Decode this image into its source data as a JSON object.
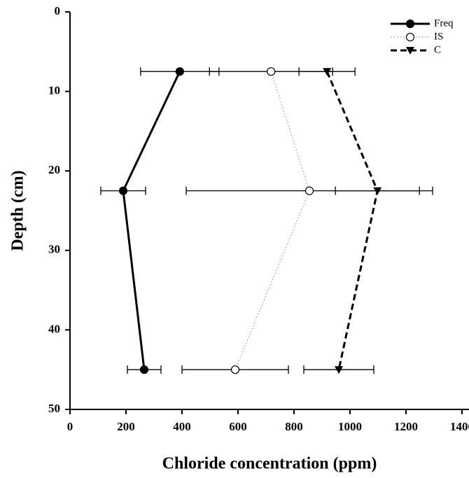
{
  "chart_data": {
    "type": "line",
    "x_label": "Chloride concentration (ppm)",
    "y_label": "Depth (cm)",
    "y": [
      7.5,
      22.5,
      45
    ],
    "series": [
      {
        "name": "Freq",
        "color": "#000000",
        "line_style": "solid",
        "marker": "filled-circle",
        "values": [
          392,
          190,
          265
        ],
        "errors": [
          140,
          80,
          60
        ]
      },
      {
        "name": "IS",
        "color": "#999999",
        "line_style": "dotted",
        "marker": "open-circle",
        "values": [
          718,
          855,
          590
        ],
        "errors": [
          220,
          440,
          190
        ]
      },
      {
        "name": "C",
        "color": "#000000",
        "line_style": "dashed",
        "marker": "down-triangle",
        "values": [
          918,
          1098,
          960
        ],
        "errors": [
          100,
          150,
          125
        ]
      }
    ],
    "xlim": [
      0,
      1400
    ],
    "xticks": [
      0,
      200,
      400,
      600,
      800,
      1000,
      1200,
      1400
    ],
    "ylim": [
      0,
      50
    ],
    "yticks": [
      0,
      10,
      20,
      30,
      40,
      50
    ],
    "y_inverted": true,
    "legend": "top-right"
  }
}
